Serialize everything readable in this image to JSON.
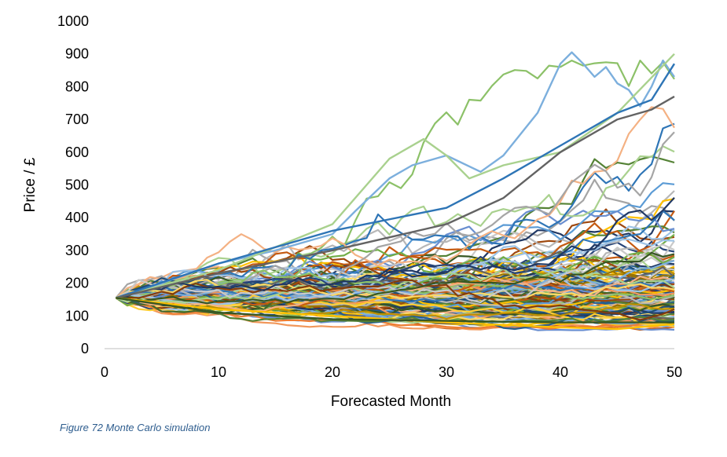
{
  "caption": "Figure 72 Monte Carlo simulation",
  "chart_data": {
    "type": "line",
    "title": "",
    "xlabel": "Forecasted Month",
    "ylabel": "Price / £",
    "xlim": [
      0,
      50
    ],
    "ylim": [
      0,
      1000
    ],
    "x_ticks": [
      0,
      10,
      20,
      30,
      40,
      50
    ],
    "y_ticks": [
      0,
      100,
      200,
      300,
      400,
      500,
      600,
      700,
      800,
      900,
      1000
    ],
    "grid": false,
    "legend": "none",
    "start_month": 1,
    "start_value": 155,
    "series_count": 150,
    "palette": [
      "#1f4e79",
      "#ed7d31",
      "#a5a5a5",
      "#ffc000",
      "#5b9bd5",
      "#70ad47",
      "#264478",
      "#9e480e",
      "#636363",
      "#997300",
      "#255e91",
      "#43682b",
      "#698ed0",
      "#f1975a",
      "#b7b7b7",
      "#ffcd33",
      "#7cafdd",
      "#8cc168",
      "#c55a11",
      "#2e75b6",
      "#548235",
      "#bf9000",
      "#f4b183",
      "#9dc3e6",
      "#a9d18e",
      "#ffd966",
      "#c9c9c9",
      "#843c0c",
      "#203864",
      "#385723"
    ],
    "highlight_series": [
      {
        "name": "",
        "x": [
          1,
          5,
          10,
          15,
          20,
          22,
          25,
          27,
          30,
          33,
          35,
          38,
          40,
          41,
          42,
          43,
          44,
          45,
          46,
          47,
          48,
          49,
          50
        ],
        "y": [
          155,
          200,
          260,
          300,
          350,
          420,
          520,
          560,
          590,
          540,
          590,
          720,
          870,
          905,
          870,
          830,
          860,
          810,
          790,
          740,
          800,
          880,
          830
        ]
      },
      {
        "name": "",
        "x": [
          1,
          10,
          20,
          25,
          28,
          30,
          32,
          35,
          40,
          45,
          50
        ],
        "y": [
          155,
          240,
          380,
          580,
          640,
          590,
          520,
          560,
          600,
          720,
          900
        ]
      },
      {
        "name": "",
        "x": [
          1,
          10,
          20,
          30,
          35,
          40,
          45,
          48,
          50
        ],
        "y": [
          155,
          260,
          360,
          430,
          520,
          620,
          720,
          760,
          870
        ]
      },
      {
        "name": "",
        "x": [
          1,
          10,
          20,
          30,
          35,
          40,
          45,
          48,
          50
        ],
        "y": [
          155,
          230,
          300,
          380,
          460,
          600,
          700,
          730,
          770
        ]
      },
      {
        "name": "",
        "x": [
          1,
          10,
          20,
          30,
          40,
          45,
          50
        ],
        "y": [
          155,
          120,
          100,
          80,
          65,
          60,
          75
        ]
      },
      {
        "name": "",
        "x": [
          1,
          10,
          20,
          30,
          40,
          50
        ],
        "y": [
          155,
          110,
          90,
          85,
          80,
          80
        ]
      }
    ]
  }
}
